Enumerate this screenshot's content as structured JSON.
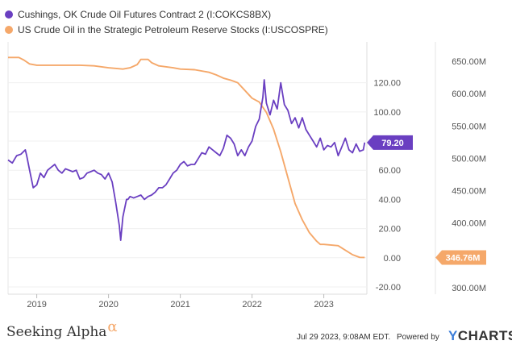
{
  "chart_data": {
    "type": "line",
    "title": "",
    "x": {
      "range": [
        2018.6,
        2023.6
      ],
      "tick_labels": [
        "2019",
        "2020",
        "2021",
        "2022",
        "2023"
      ],
      "tick_values": [
        2019,
        2020,
        2021,
        2022,
        2023
      ]
    },
    "y_left": {
      "range": [
        -25,
        148
      ],
      "tick_values": [
        120,
        100,
        80,
        60,
        40,
        20,
        0,
        -20
      ],
      "tick_labels": [
        "120.00",
        "100.00",
        "80.00",
        "60.00",
        "40.00",
        "20.00",
        "0.00",
        "-20.00"
      ]
    },
    "y_right": {
      "range": [
        290,
        680
      ],
      "tick_values": [
        650,
        600,
        550,
        500,
        450,
        400,
        350,
        300
      ],
      "tick_labels": [
        "650.00M",
        "600.00M",
        "550.00M",
        "500.00M",
        "450.00M",
        "400.00M",
        "350.00M",
        "300.00M"
      ]
    },
    "series": [
      {
        "name": "Cushings, OK Crude Oil Futures Contract 2 (I:COKCS8BX)",
        "color": "#6a3fc1",
        "axis": "left",
        "last_value_label": "79.20",
        "x": [
          2018.6,
          2018.66,
          2018.72,
          2018.78,
          2018.84,
          2018.86,
          2018.9,
          2018.95,
          2019.0,
          2019.05,
          2019.1,
          2019.15,
          2019.2,
          2019.25,
          2019.3,
          2019.35,
          2019.4,
          2019.45,
          2019.5,
          2019.55,
          2019.6,
          2019.65,
          2019.7,
          2019.75,
          2019.8,
          2019.85,
          2019.9,
          2019.95,
          2020.0,
          2020.05,
          2020.1,
          2020.15,
          2020.17,
          2020.2,
          2020.25,
          2020.27,
          2020.3,
          2020.35,
          2020.4,
          2020.45,
          2020.5,
          2020.55,
          2020.6,
          2020.65,
          2020.7,
          2020.75,
          2020.8,
          2020.85,
          2020.9,
          2020.95,
          2021.0,
          2021.05,
          2021.1,
          2021.15,
          2021.2,
          2021.25,
          2021.3,
          2021.35,
          2021.4,
          2021.45,
          2021.5,
          2021.55,
          2021.6,
          2021.65,
          2021.7,
          2021.75,
          2021.8,
          2021.85,
          2021.9,
          2021.95,
          2022.0,
          2022.05,
          2022.1,
          2022.15,
          2022.17,
          2022.2,
          2022.25,
          2022.3,
          2022.35,
          2022.4,
          2022.45,
          2022.5,
          2022.55,
          2022.6,
          2022.65,
          2022.7,
          2022.75,
          2022.8,
          2022.85,
          2022.9,
          2022.95,
          2023.0,
          2023.05,
          2023.1,
          2023.15,
          2023.2,
          2023.25,
          2023.3,
          2023.35,
          2023.4,
          2023.45,
          2023.5,
          2023.55,
          2023.57
        ],
        "values": [
          67,
          65,
          70,
          71,
          74,
          70,
          60,
          48,
          50,
          58,
          55,
          60,
          62,
          64,
          60,
          58,
          61,
          60,
          59,
          60,
          54,
          55,
          58,
          59,
          60,
          58,
          57,
          54,
          58,
          52,
          38,
          22,
          12,
          28,
          40,
          40,
          42,
          41,
          42,
          43,
          40,
          42,
          43,
          45,
          48,
          48,
          50,
          54,
          58,
          60,
          64,
          66,
          63,
          64,
          64,
          68,
          72,
          71,
          76,
          74,
          72,
          70,
          75,
          84,
          82,
          78,
          70,
          74,
          70,
          76,
          80,
          90,
          95,
          110,
          122,
          106,
          98,
          108,
          102,
          120,
          105,
          101,
          92,
          96,
          89,
          96,
          88,
          84,
          80,
          76,
          82,
          74,
          77,
          76,
          79,
          70,
          76,
          82,
          74,
          72,
          78,
          73,
          74,
          79
        ]
      },
      {
        "name": "US Crude Oil in the Strategic Petroleum Reserve Stocks (I:USCOSPRE)",
        "color": "#f5a86a",
        "axis": "right",
        "last_value_label": "346.76M",
        "x": [
          2018.6,
          2018.75,
          2018.82,
          2018.9,
          2019.0,
          2019.2,
          2019.4,
          2019.6,
          2019.8,
          2020.0,
          2020.2,
          2020.3,
          2020.4,
          2020.45,
          2020.55,
          2020.6,
          2020.7,
          2020.9,
          2021.0,
          2021.2,
          2021.4,
          2021.5,
          2021.6,
          2021.7,
          2021.8,
          2021.9,
          2022.0,
          2022.1,
          2022.2,
          2022.3,
          2022.4,
          2022.5,
          2022.6,
          2022.7,
          2022.8,
          2022.9,
          2022.95,
          2023.0,
          2023.2,
          2023.3,
          2023.4,
          2023.5,
          2023.57
        ],
        "values": [
          656,
          656,
          652,
          646,
          644,
          644,
          644,
          644,
          643,
          640,
          638,
          640,
          645,
          653,
          653,
          648,
          643,
          640,
          638,
          637,
          633,
          629,
          624,
          621,
          617,
          605,
          593,
          587,
          571,
          545,
          510,
          470,
          430,
          405,
          385,
          372,
          367,
          367,
          365,
          358,
          351,
          347,
          346.76
        ]
      }
    ]
  },
  "legend": {
    "items": [
      {
        "label": "Cushings, OK Crude Oil Futures Contract 2 (I:COKCS8BX)",
        "color": "#6a3fc1"
      },
      {
        "label": "US Crude Oil in the Strategic Petroleum Reserve Stocks (I:USCOSPRE)",
        "color": "#f5a86a"
      }
    ]
  },
  "footer": {
    "brand": "Seeking Alpha",
    "brand_alpha": "α",
    "timestamp": "Jul 29 2023, 9:08AM EDT.",
    "powered_by": "Powered by",
    "ycharts_y": "Y",
    "ycharts_rest": "CHARTS"
  }
}
